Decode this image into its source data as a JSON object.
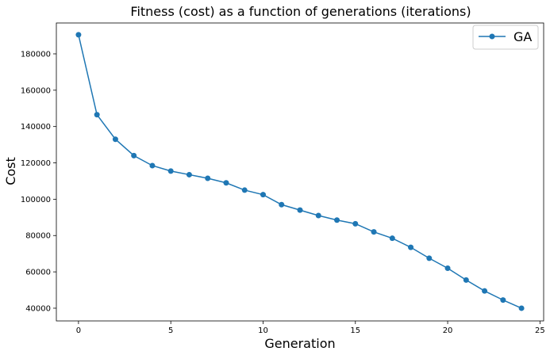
{
  "chart_data": {
    "type": "line",
    "title": "Fitness (cost) as a function of generations (iterations)",
    "xlabel": "Generation",
    "ylabel": "Cost",
    "xlim": [
      -1.2,
      25.2
    ],
    "ylim": [
      33000,
      197000
    ],
    "xticks": [
      0,
      5,
      10,
      15,
      20,
      25
    ],
    "yticks": [
      40000,
      60000,
      80000,
      100000,
      120000,
      140000,
      160000,
      180000
    ],
    "grid": false,
    "legend_position": "top-right",
    "colors": {
      "line": "#1f77b4",
      "axis": "#000000",
      "background": "#ffffff"
    },
    "series": [
      {
        "name": "GA",
        "marker": "circle",
        "x": [
          0,
          1,
          2,
          3,
          4,
          5,
          6,
          7,
          8,
          9,
          10,
          11,
          12,
          13,
          14,
          15,
          16,
          17,
          18,
          19,
          20,
          21,
          22,
          23,
          24
        ],
        "y": [
          190500,
          146500,
          133000,
          124000,
          118500,
          115500,
          113500,
          111500,
          109000,
          105000,
          102500,
          97000,
          94000,
          91000,
          88500,
          86500,
          82000,
          78500,
          73500,
          67500,
          62000,
          55500,
          49500,
          44500,
          40000
        ]
      }
    ]
  }
}
